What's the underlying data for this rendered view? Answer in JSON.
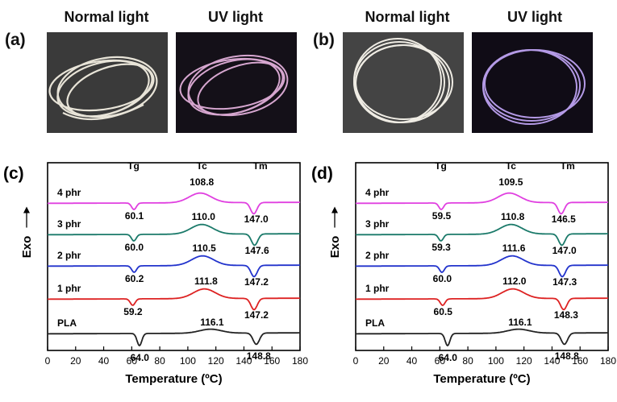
{
  "photos": {
    "a": {
      "label": "(a)",
      "normal": "Normal light",
      "uv": "UV light"
    },
    "b": {
      "label": "(b)",
      "normal": "Normal light",
      "uv": "UV light"
    }
  },
  "chart_data": [
    {
      "panel": "(c)",
      "type": "line",
      "xlabel": "Temperature (ºC)",
      "ylabel": "Exo",
      "xlim": [
        0,
        180
      ],
      "xticks": [
        0,
        20,
        40,
        60,
        80,
        100,
        120,
        140,
        160,
        180
      ],
      "column_labels": [
        "Tg",
        "Tc",
        "Tm"
      ],
      "series": [
        {
          "name": "4 phr",
          "color": "#e040e0",
          "Tg": 60.1,
          "Tc": 108.8,
          "Tm": 147.0,
          "labels": [
            "60.1",
            "108.8",
            "147.0"
          ]
        },
        {
          "name": "3 phr",
          "color": "#1b7a6a",
          "Tg": 60.0,
          "Tc": 110.0,
          "Tm": 147.6,
          "labels": [
            "60.0",
            "110.0",
            "147.6"
          ]
        },
        {
          "name": "2 phr",
          "color": "#2233cc",
          "Tg": 60.2,
          "Tc": 110.5,
          "Tm": 147.2,
          "labels": [
            "60.2",
            "110.5",
            "147.2"
          ]
        },
        {
          "name": "1 phr",
          "color": "#dd2222",
          "Tg": 59.2,
          "Tc": 111.8,
          "Tm": 147.2,
          "labels": [
            "59.2",
            "111.8",
            "147.2"
          ]
        },
        {
          "name": "PLA",
          "color": "#222222",
          "Tg": 64.0,
          "Tc": 116.1,
          "Tm": 148.8,
          "labels": [
            "64.0",
            "116.1",
            "148.8"
          ]
        }
      ]
    },
    {
      "panel": "(d)",
      "type": "line",
      "xlabel": "Temperature (ºC)",
      "ylabel": "Exo",
      "xlim": [
        0,
        180
      ],
      "xticks": [
        0,
        20,
        40,
        60,
        80,
        100,
        120,
        140,
        160,
        180
      ],
      "column_labels": [
        "Tg",
        "Tc",
        "Tm"
      ],
      "series": [
        {
          "name": "4 phr",
          "color": "#e040e0",
          "Tg": 59.5,
          "Tc": 109.5,
          "Tm": 146.5,
          "labels": [
            "59.5",
            "109.5",
            "146.5"
          ]
        },
        {
          "name": "3 phr",
          "color": "#1b7a6a",
          "Tg": 59.3,
          "Tc": 110.8,
          "Tm": 147.0,
          "labels": [
            "59.3",
            "110.8",
            "147.0"
          ]
        },
        {
          "name": "2 phr",
          "color": "#2233cc",
          "Tg": 60.0,
          "Tc": 111.6,
          "Tm": 147.3,
          "labels": [
            "60.0",
            "111.6",
            "147.3"
          ]
        },
        {
          "name": "1 phr",
          "color": "#dd2222",
          "Tg": 60.5,
          "Tc": 112.0,
          "Tm": 148.3,
          "labels": [
            "60.5",
            "112.0",
            "148.3"
          ]
        },
        {
          "name": "PLA",
          "color": "#222222",
          "Tg": 64.0,
          "Tc": 116.1,
          "Tm": 148.8,
          "labels": [
            "64.0",
            "116.1",
            "148.8"
          ]
        }
      ]
    }
  ]
}
